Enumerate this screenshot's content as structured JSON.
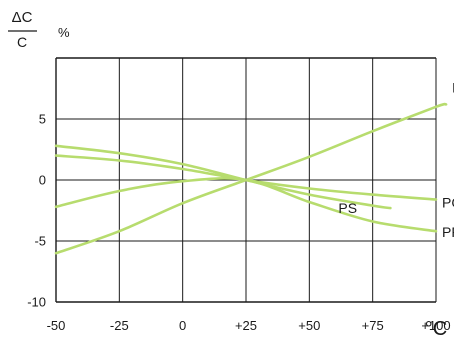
{
  "chart_data": {
    "type": "line",
    "x_values": [
      -50,
      -25,
      0,
      25,
      50,
      75,
      100
    ],
    "x_tick_labels": [
      "-50",
      "-25",
      "0",
      "+25",
      "+50",
      "+75",
      "+100"
    ],
    "y_tick_values": [
      5,
      0,
      -5,
      -10
    ],
    "y_tick_labels": [
      "5",
      "0",
      "-5",
      "-10"
    ],
    "xlim": [
      -50,
      100
    ],
    "ylim": [
      -10,
      10
    ],
    "x_unit": "°C",
    "y_label_top": "ΔC",
    "y_label_bottom": "C",
    "y_unit": "%",
    "grid": true,
    "line_color": "#b7dc6e",
    "series": [
      {
        "name": "PE",
        "x": [
          -50,
          -25,
          0,
          25,
          50,
          75,
          100,
          104
        ],
        "y": [
          -6,
          -4.2,
          -1.9,
          0,
          1.9,
          4,
          6,
          6.2
        ]
      },
      {
        "name": "PC",
        "x": [
          -50,
          -25,
          0,
          25,
          50,
          75,
          100
        ],
        "y": [
          2,
          1.6,
          0.9,
          0,
          -0.7,
          -1.2,
          -1.6
        ]
      },
      {
        "name": "PS",
        "x": [
          -50,
          -25,
          0,
          25,
          50,
          75,
          82
        ],
        "y": [
          2.8,
          2.2,
          1.3,
          0,
          -1.2,
          -2.1,
          -2.3
        ]
      },
      {
        "name": "PP",
        "x": [
          -50,
          -25,
          0,
          25,
          50,
          75,
          100
        ],
        "y": [
          -2.2,
          -0.9,
          -0.1,
          0,
          -1.8,
          -3.4,
          -4.2
        ]
      }
    ]
  }
}
